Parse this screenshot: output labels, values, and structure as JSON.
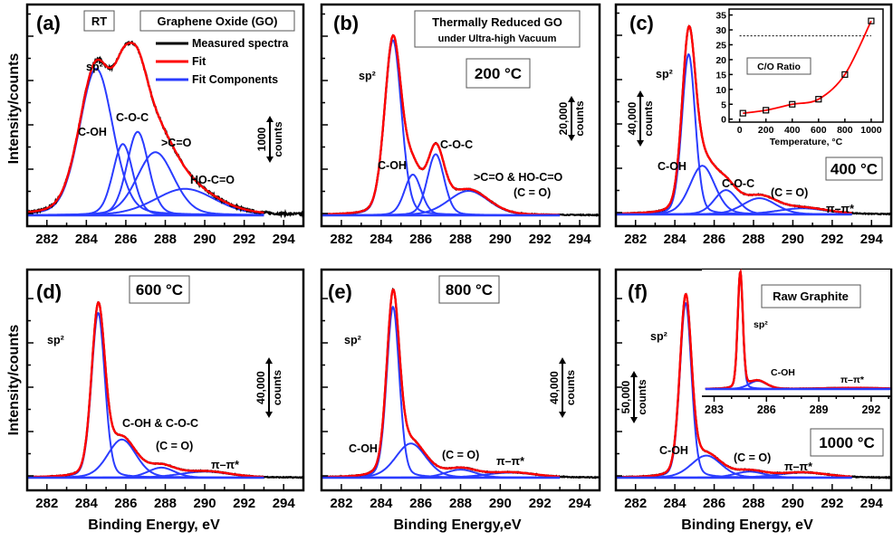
{
  "colors": {
    "measured": "#000000",
    "fit": "#ff0000",
    "components": "#2a3cff",
    "inset_fit": "#ff0000"
  },
  "y_axis_title": "Intensity/counts",
  "chart_data": [
    {
      "panel": "(a)",
      "type": "line",
      "xlim": [
        281,
        295
      ],
      "xticks": [
        282,
        284,
        286,
        288,
        290,
        292,
        294
      ],
      "xlabel": "",
      "ylabel": "Intensity/counts",
      "boxes": [
        "RT",
        "Graphene Oxide (GO)"
      ],
      "legend": {
        "placement": "top-right",
        "entries": [
          "Measured spectra",
          "Fit",
          "Fit Components"
        ]
      },
      "scale_bar": {
        "value": "1000",
        "unit": "counts"
      },
      "peaks": [
        {
          "name": "sp²",
          "center": 284.5,
          "fwhm": 2.0,
          "height": 0.72
        },
        {
          "name": "C-OH",
          "center": 285.85,
          "fwhm": 1.2,
          "height": 0.35
        },
        {
          "name": "C-O-C",
          "center": 286.6,
          "fwhm": 1.3,
          "height": 0.41
        },
        {
          "name": ">C=O",
          "center": 287.5,
          "fwhm": 2.2,
          "height": 0.31
        },
        {
          "name": "HO-C=O",
          "center": 289.0,
          "fwhm": 3.6,
          "height": 0.13
        }
      ]
    },
    {
      "panel": "(b)",
      "type": "line",
      "xlim": [
        281,
        295
      ],
      "xticks": [
        282,
        284,
        286,
        288,
        290,
        292,
        294
      ],
      "xlabel": "",
      "boxes": [
        "Thermally Reduced GO",
        "under Ultra-high Vacuum",
        "200 °C"
      ],
      "scale_bar": {
        "value": "20,000",
        "unit": "counts"
      },
      "peaks": [
        {
          "name": "sp²",
          "center": 284.6,
          "fwhm": 1.0,
          "height": 0.86
        },
        {
          "name": "C-OH",
          "center": 285.6,
          "fwhm": 1.0,
          "height": 0.2
        },
        {
          "name": "C-O-C",
          "center": 286.75,
          "fwhm": 1.0,
          "height": 0.3
        },
        {
          "name": ">C=O & HO-C=O",
          "center": 288.4,
          "fwhm": 2.4,
          "height": 0.12
        }
      ],
      "extra_labels": [
        "(C = O)"
      ]
    },
    {
      "panel": "(c)",
      "type": "line",
      "xlim": [
        281,
        295
      ],
      "xticks": [
        282,
        284,
        286,
        288,
        290,
        292,
        294
      ],
      "xlabel": "",
      "boxes": [
        "400 °C"
      ],
      "scale_bar": {
        "value": "40,000",
        "unit": "counts"
      },
      "peaks": [
        {
          "name": "sp²",
          "center": 284.7,
          "fwhm": 0.8,
          "height": 0.79
        },
        {
          "name": "C-OH",
          "center": 285.4,
          "fwhm": 1.5,
          "height": 0.24
        },
        {
          "name": "C-O-C",
          "center": 286.6,
          "fwhm": 1.4,
          "height": 0.12
        },
        {
          "name": "(C = O)",
          "center": 288.3,
          "fwhm": 2.0,
          "height": 0.08
        },
        {
          "name": "π–π*",
          "center": 290.5,
          "fwhm": 3.0,
          "height": 0.03
        }
      ],
      "inset": {
        "type": "line",
        "box": "C/O Ratio",
        "xlabel": "Temperature, °C",
        "xlim": [
          -80,
          1090
        ],
        "ylim": [
          -1,
          37
        ],
        "xticks": [
          0,
          200,
          400,
          600,
          800,
          1000
        ],
        "yticks": [
          0,
          5,
          10,
          15,
          20,
          25,
          30,
          35
        ],
        "x": [
          25,
          200,
          400,
          600,
          800,
          1000
        ],
        "y": [
          2,
          3,
          5,
          6.7,
          15,
          33
        ],
        "reference_line_y": 28
      }
    },
    {
      "panel": "(d)",
      "type": "line",
      "xlim": [
        281,
        295
      ],
      "xticks": [
        282,
        284,
        286,
        288,
        290,
        292,
        294
      ],
      "xlabel": "Binding Energy, eV",
      "ylabel": "Intensity/counts",
      "boxes": [
        "600 °C"
      ],
      "scale_bar": {
        "value": "40,000",
        "unit": "counts"
      },
      "peaks": [
        {
          "name": "sp²",
          "center": 284.6,
          "fwhm": 0.8,
          "height": 0.82
        },
        {
          "name": "C-OH & C-O-C",
          "center": 285.8,
          "fwhm": 1.7,
          "height": 0.19
        },
        {
          "name": "(C = O)",
          "center": 287.8,
          "fwhm": 1.6,
          "height": 0.05
        },
        {
          "name": "π–π*",
          "center": 290.0,
          "fwhm": 3.0,
          "height": 0.03
        }
      ]
    },
    {
      "panel": "(e)",
      "type": "line",
      "xlim": [
        281,
        295
      ],
      "xticks": [
        282,
        284,
        286,
        288,
        290,
        292,
        294
      ],
      "xlabel": "Binding Energy,eV",
      "boxes": [
        "800 °C"
      ],
      "scale_bar": {
        "value": "40,000",
        "unit": "counts"
      },
      "peaks": [
        {
          "name": "sp²",
          "center": 284.6,
          "fwhm": 0.75,
          "height": 0.85
        },
        {
          "name": "C-OH",
          "center": 285.5,
          "fwhm": 1.8,
          "height": 0.17
        },
        {
          "name": "(C = O)",
          "center": 288.0,
          "fwhm": 1.8,
          "height": 0.04
        },
        {
          "name": "π–π*",
          "center": 290.5,
          "fwhm": 3.0,
          "height": 0.025
        }
      ]
    },
    {
      "panel": "(f)",
      "type": "line",
      "xlim": [
        281,
        295
      ],
      "xticks": [
        282,
        284,
        286,
        288,
        290,
        292,
        294
      ],
      "xlabel": "Binding Energy, eV",
      "boxes": [
        "Raw Graphite",
        "1000 °C"
      ],
      "scale_bar": {
        "value": "50,000",
        "unit": "counts"
      },
      "peaks": [
        {
          "name": "sp²",
          "center": 284.55,
          "fwhm": 0.7,
          "height": 0.87
        },
        {
          "name": "C-OH",
          "center": 285.6,
          "fwhm": 1.8,
          "height": 0.11
        },
        {
          "name": "(C = O)",
          "center": 287.8,
          "fwhm": 1.8,
          "height": 0.03
        },
        {
          "name": "π–π*",
          "center": 290.5,
          "fwhm": 3.0,
          "height": 0.025
        }
      ],
      "inset": {
        "type": "line",
        "xlim": [
          282.3,
          293.2
        ],
        "xticks": [
          283,
          286,
          289,
          292
        ],
        "peaks": [
          {
            "name": "sp²",
            "center": 284.5,
            "fwhm": 0.35,
            "height": 1.0
          },
          {
            "name": "C-OH",
            "center": 285.5,
            "fwhm": 1.2,
            "height": 0.07
          },
          {
            "name": "π–π*",
            "center": 291.0,
            "fwhm": 4.0,
            "height": 0.01
          }
        ]
      }
    }
  ]
}
